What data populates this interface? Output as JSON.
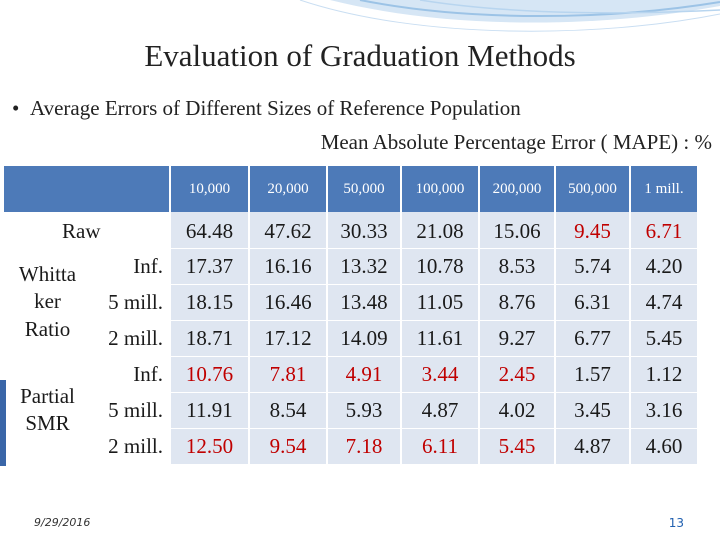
{
  "slide": {
    "title": "Evaluation of Graduation Methods",
    "bullet": "Average Errors of Different Sizes of Reference Population",
    "subtitle": "Mean Absolute Percentage Error ( MAPE) : %",
    "date": "9/29/2016",
    "page": "13"
  },
  "table": {
    "headers": [
      "10,000",
      "20,000",
      "50,000",
      "100,000",
      "200,000",
      "500,000",
      "1 mill."
    ],
    "raw_label": "Raw",
    "raw": [
      "64.48",
      "47.62",
      "30.33",
      "21.08",
      "15.06",
      "9.45",
      "6.71"
    ],
    "whittaker_label": "Whitta ker Ratio",
    "whittaker": [
      {
        "sub": "Inf.",
        "values": [
          "17.37",
          "16.16",
          "13.32",
          "10.78",
          "8.53",
          "5.74",
          "4.20"
        ]
      },
      {
        "sub": "5 mill.",
        "values": [
          "18.15",
          "16.46",
          "13.48",
          "11.05",
          "8.76",
          "6.31",
          "4.74"
        ]
      },
      {
        "sub": "2 mill.",
        "values": [
          "18.71",
          "17.12",
          "14.09",
          "11.61",
          "9.27",
          "6.77",
          "5.45"
        ]
      }
    ],
    "partial_label": "Partial SMR",
    "partial": [
      {
        "sub": "Inf.",
        "values": [
          "10.76",
          "7.81",
          "4.91",
          "3.44",
          "2.45",
          "1.57",
          "1.12"
        ]
      },
      {
        "sub": "5 mill.",
        "values": [
          "11.91",
          "8.54",
          "5.93",
          "4.87",
          "4.02",
          "3.45",
          "3.16"
        ]
      },
      {
        "sub": "2 mill.",
        "values": [
          "12.50",
          "9.54",
          "7.18",
          "6.11",
          "5.45",
          "4.87",
          "4.60"
        ]
      }
    ],
    "colors": {
      "header_bg": "#4d7ab8",
      "cell_bg": "#dfe6f1",
      "highlight": "#c00000"
    }
  }
}
